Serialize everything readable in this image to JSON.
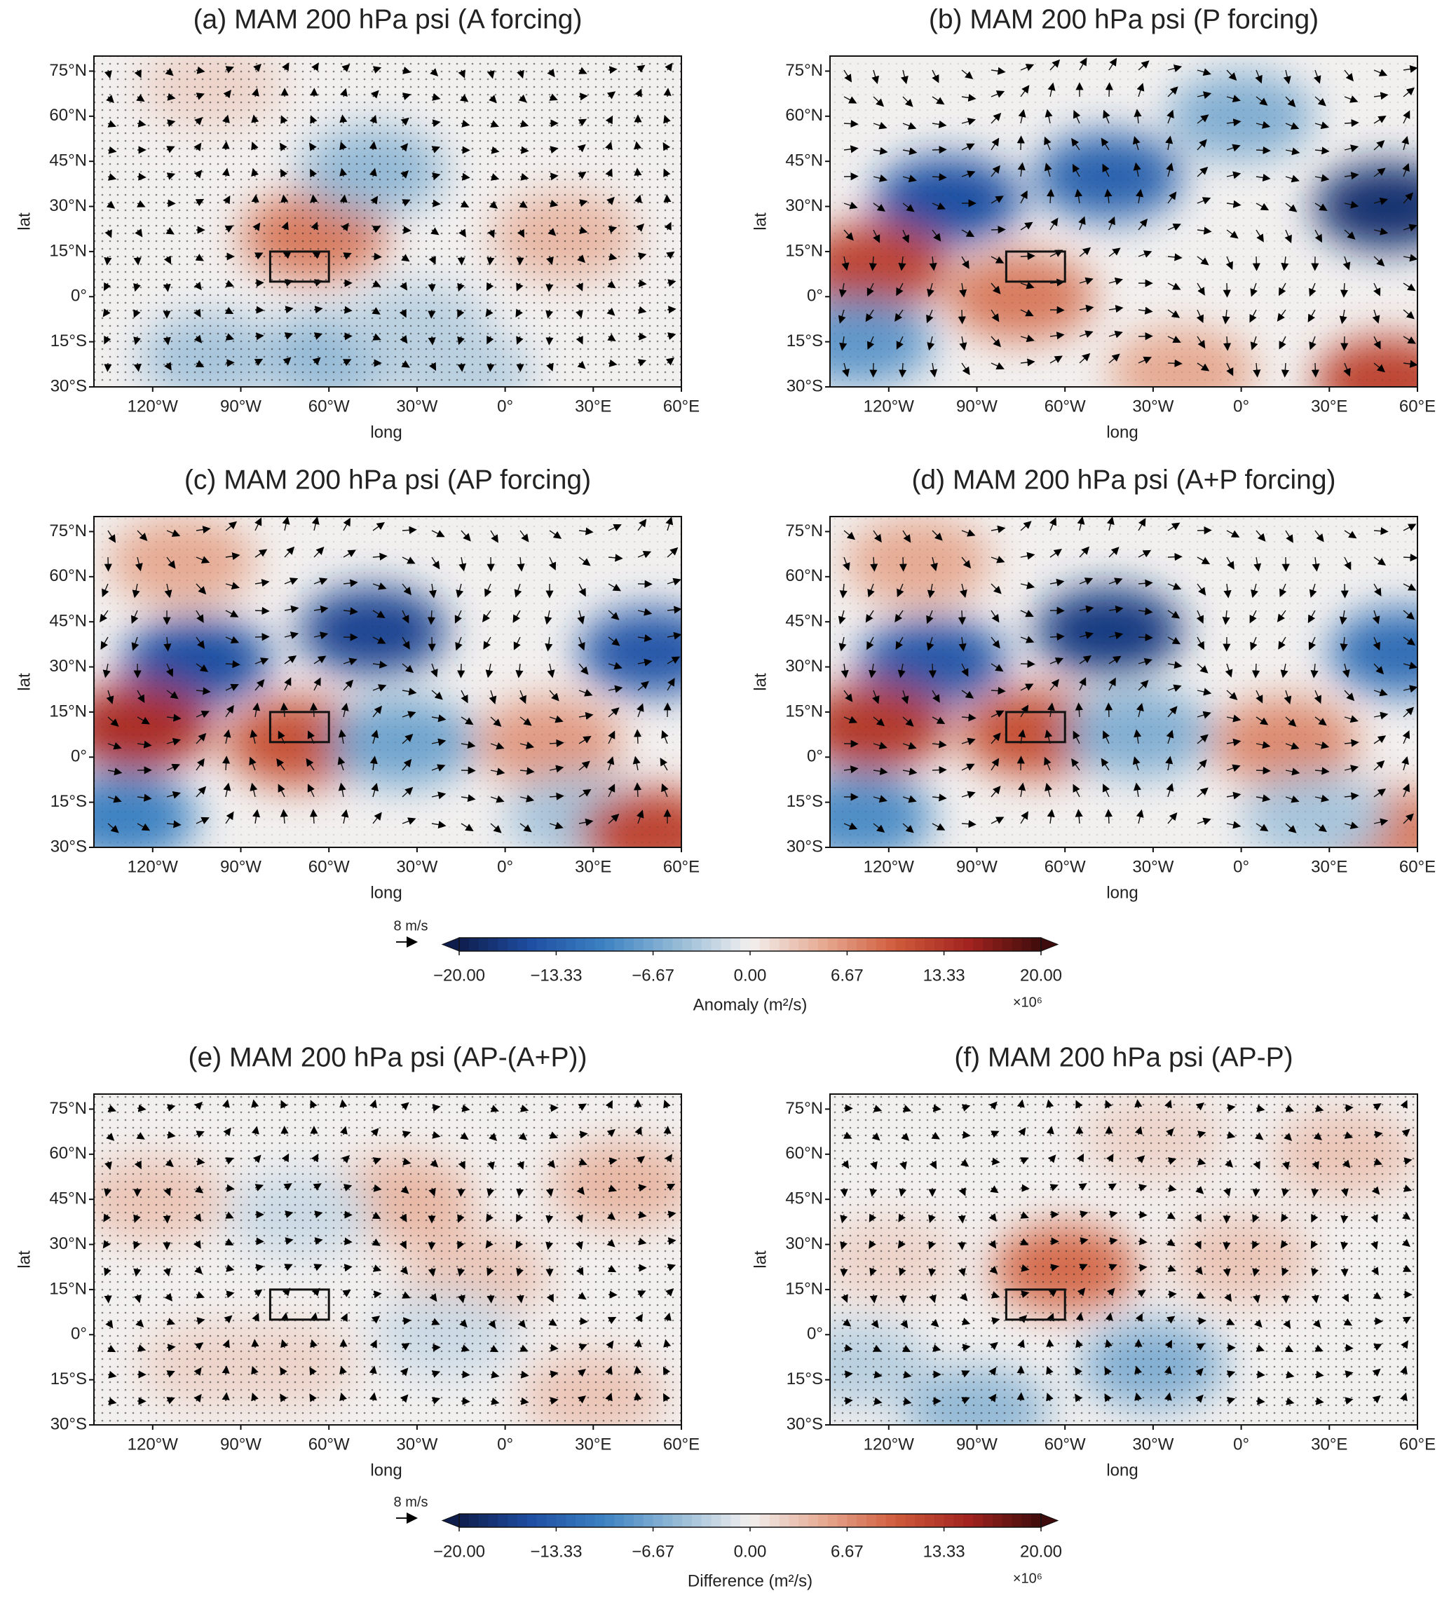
{
  "chart_data": {
    "type": "map",
    "axes": {
      "xlabel": "long",
      "ylabel": "lat",
      "xlim": [
        -140,
        60
      ],
      "ylim": [
        -30,
        80
      ],
      "xticks": [
        {
          "value": -120,
          "label": "120°W"
        },
        {
          "value": -90,
          "label": "90°W"
        },
        {
          "value": -60,
          "label": "60°W"
        },
        {
          "value": -30,
          "label": "30°W"
        },
        {
          "value": 0,
          "label": "0°"
        },
        {
          "value": 30,
          "label": "30°E"
        },
        {
          "value": 60,
          "label": "60°E"
        }
      ],
      "yticks": [
        {
          "value": 75,
          "label": "75°N"
        },
        {
          "value": 60,
          "label": "60°N"
        },
        {
          "value": 45,
          "label": "45°N"
        },
        {
          "value": 30,
          "label": "30°N"
        },
        {
          "value": 15,
          "label": "15°N"
        },
        {
          "value": 0,
          "label": "0°"
        },
        {
          "value": -15,
          "label": "15°S"
        },
        {
          "value": -30,
          "label": "30°S"
        }
      ],
      "box": {
        "lon": [
          -80,
          -60
        ],
        "lat": [
          5,
          15
        ]
      }
    },
    "colormap": [
      "#0f1d4d",
      "#1f4fa3",
      "#3d82c2",
      "#94bad6",
      "#f2f0ef",
      "#e6aa93",
      "#cf5c3c",
      "#a2231f",
      "#3e0c0c"
    ],
    "panels": [
      {
        "title": "(a) MAM 200 hPa psi (A forcing)",
        "anomaly_centers": [
          {
            "lon": -65,
            "lat": 20,
            "value": 8
          },
          {
            "lon": -45,
            "lat": 42,
            "value": -5
          },
          {
            "lon": 20,
            "lat": 20,
            "value": 4
          },
          {
            "lon": -60,
            "lat": -20,
            "value": -5
          },
          {
            "lon": -100,
            "lat": -20,
            "value": -4
          },
          {
            "lon": -30,
            "lat": -10,
            "value": -3
          },
          {
            "lon": -100,
            "lat": 70,
            "value": 2
          },
          {
            "lon": -15,
            "lat": -25,
            "value": -3
          }
        ]
      },
      {
        "title": "(b)  MAM 200 hPa psi (P forcing)",
        "anomaly_centers": [
          {
            "lon": -100,
            "lat": 32,
            "value": -15
          },
          {
            "lon": -45,
            "lat": 40,
            "value": -13
          },
          {
            "lon": 50,
            "lat": 30,
            "value": -18
          },
          {
            "lon": -125,
            "lat": 10,
            "value": 12
          },
          {
            "lon": -75,
            "lat": 0,
            "value": 8
          },
          {
            "lon": -20,
            "lat": -25,
            "value": 5
          },
          {
            "lon": 50,
            "lat": -28,
            "value": 12
          },
          {
            "lon": -130,
            "lat": -15,
            "value": -8
          },
          {
            "lon": 0,
            "lat": 60,
            "value": -6
          }
        ]
      },
      {
        "title": "(c)  MAM 200 hPa psi (AP forcing)",
        "anomaly_centers": [
          {
            "lon": -105,
            "lat": 32,
            "value": -15
          },
          {
            "lon": -45,
            "lat": 42,
            "value": -16
          },
          {
            "lon": 50,
            "lat": 35,
            "value": -14
          },
          {
            "lon": -125,
            "lat": 10,
            "value": 14
          },
          {
            "lon": -70,
            "lat": 5,
            "value": 11
          },
          {
            "lon": -35,
            "lat": 5,
            "value": -7
          },
          {
            "lon": 15,
            "lat": 5,
            "value": 6
          },
          {
            "lon": 25,
            "lat": -20,
            "value": -4
          },
          {
            "lon": 50,
            "lat": -25,
            "value": 12
          },
          {
            "lon": -130,
            "lat": -20,
            "value": -10
          },
          {
            "lon": -110,
            "lat": 65,
            "value": 5
          }
        ]
      },
      {
        "title": "(d)  MAM 200 hPa psi (A+P forcing)",
        "anomaly_centers": [
          {
            "lon": -105,
            "lat": 32,
            "value": -14
          },
          {
            "lon": -45,
            "lat": 42,
            "value": -17
          },
          {
            "lon": 55,
            "lat": 35,
            "value": -12
          },
          {
            "lon": -125,
            "lat": 10,
            "value": 13
          },
          {
            "lon": -70,
            "lat": 8,
            "value": 11
          },
          {
            "lon": -35,
            "lat": 8,
            "value": -6
          },
          {
            "lon": 15,
            "lat": 5,
            "value": 7
          },
          {
            "lon": -130,
            "lat": -20,
            "value": -9
          },
          {
            "lon": 50,
            "lat": -25,
            "value": 8
          },
          {
            "lon": 25,
            "lat": -20,
            "value": -4
          },
          {
            "lon": -110,
            "lat": 65,
            "value": 5
          }
        ]
      },
      {
        "title": "(e)  MAM 200 hPa psi (AP-(A+P))",
        "anomaly_centers": [
          {
            "lon": -35,
            "lat": 45,
            "value": 4
          },
          {
            "lon": -10,
            "lat": 20,
            "value": 3
          },
          {
            "lon": -120,
            "lat": 45,
            "value": 3
          },
          {
            "lon": 40,
            "lat": 50,
            "value": 4
          },
          {
            "lon": -70,
            "lat": 40,
            "value": -2
          },
          {
            "lon": -20,
            "lat": 0,
            "value": -2
          },
          {
            "lon": -100,
            "lat": -10,
            "value": 2
          },
          {
            "lon": 30,
            "lat": -20,
            "value": 3
          },
          {
            "lon": -75,
            "lat": -10,
            "value": 2
          }
        ]
      },
      {
        "title": "(f)  MAM 200 hPa psi (AP-P)",
        "anomaly_centers": [
          {
            "lon": -60,
            "lat": 22,
            "value": 9
          },
          {
            "lon": -30,
            "lat": -10,
            "value": -6
          },
          {
            "lon": -90,
            "lat": -25,
            "value": -5
          },
          {
            "lon": 0,
            "lat": 25,
            "value": 3
          },
          {
            "lon": -30,
            "lat": 65,
            "value": 2
          },
          {
            "lon": 35,
            "lat": 60,
            "value": 3
          },
          {
            "lon": -120,
            "lat": 25,
            "value": 2
          },
          {
            "lon": -130,
            "lat": -10,
            "value": -3
          }
        ]
      }
    ],
    "colorbars": [
      {
        "label": "Anomaly (m²/s)",
        "multiplier": "×10⁶",
        "reference_vector": "8 m/s",
        "lim": [
          -20,
          20
        ],
        "ticks": [
          {
            "value": -20,
            "label": "−20.00"
          },
          {
            "value": -13.33,
            "label": "−13.33"
          },
          {
            "value": -6.67,
            "label": "−6.67"
          },
          {
            "value": 0,
            "label": "0.00"
          },
          {
            "value": 6.67,
            "label": "6.67"
          },
          {
            "value": 13.33,
            "label": "13.33"
          },
          {
            "value": 20,
            "label": "20.00"
          }
        ]
      },
      {
        "label": "Difference (m²/s)",
        "multiplier": "×10⁶",
        "reference_vector": "8 m/s",
        "lim": [
          -20,
          20
        ],
        "ticks": [
          {
            "value": -20,
            "label": "−20.00"
          },
          {
            "value": -13.33,
            "label": "−13.33"
          },
          {
            "value": -6.67,
            "label": "−6.67"
          },
          {
            "value": 0,
            "label": "0.00"
          },
          {
            "value": 6.67,
            "label": "6.67"
          },
          {
            "value": 13.33,
            "label": "13.33"
          },
          {
            "value": 20,
            "label": "20.00"
          }
        ]
      }
    ]
  }
}
